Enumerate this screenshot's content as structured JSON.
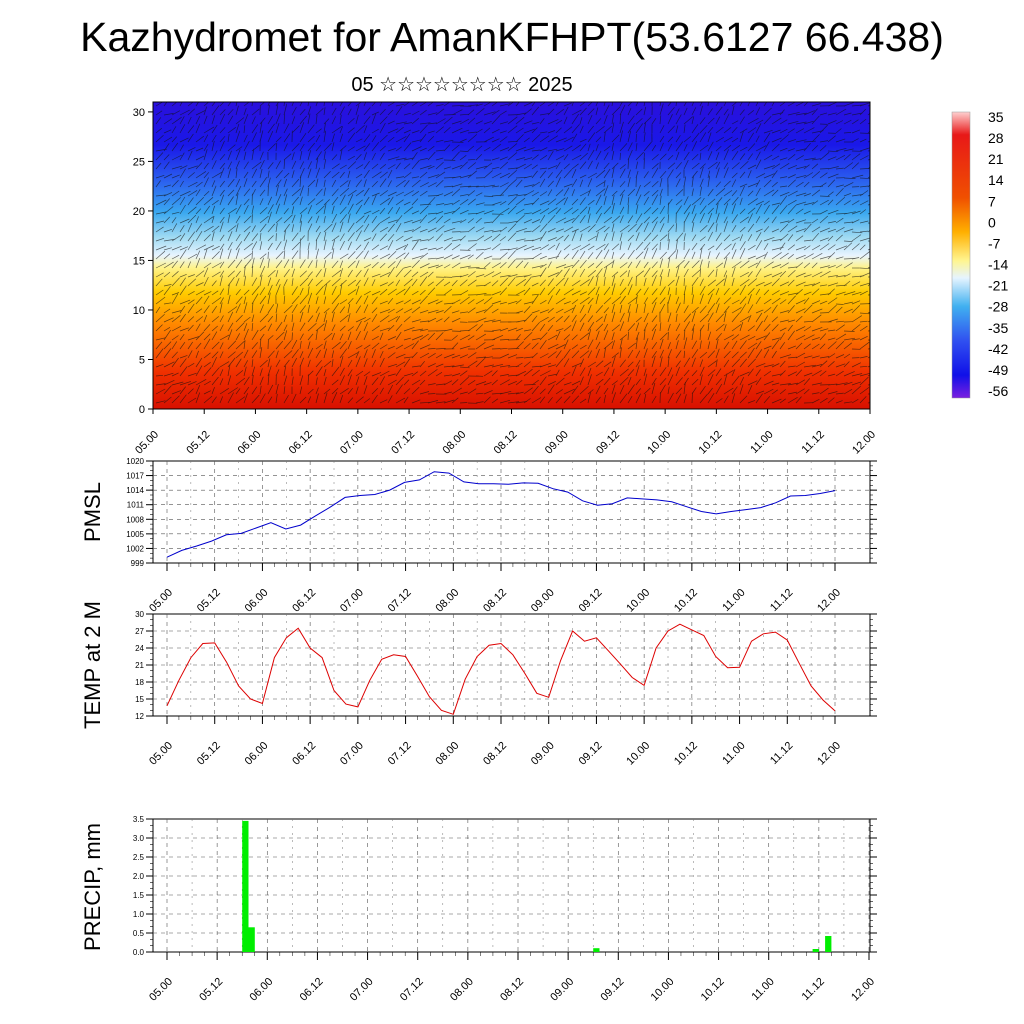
{
  "title": "Kazhydromet for AmanKFHPT(53.6127 66.438)",
  "subtitle": "05 ☆☆☆☆☆☆☆☆ 2025",
  "colors": {
    "pmsl_line": "#0000cc",
    "temp_line": "#dd0000",
    "precip_bar": "#00ee00"
  },
  "chart_data": [
    {
      "type": "heatmap",
      "name": "upper-air-cross-section",
      "x_tick_labels": [
        "05.00",
        "05.12",
        "06.00",
        "06.12",
        "07.00",
        "07.12",
        "08.00",
        "08.12",
        "09.00",
        "09.12",
        "10.00",
        "10.12",
        "11.00",
        "11.12",
        "12.00"
      ],
      "y_ticks": [
        0,
        5,
        10,
        15,
        20,
        25,
        30
      ],
      "ylim": [
        0,
        31
      ],
      "colorbar_labels": [
        "35",
        "28",
        "21",
        "14",
        "7",
        "0",
        "-7",
        "-14",
        "-21",
        "-28",
        "-35",
        "-42",
        "-49",
        "-56"
      ],
      "colorbar_range": [
        -63,
        42
      ]
    },
    {
      "type": "line",
      "name": "pmsl",
      "ylabel": "PMSL",
      "x_tick_labels": [
        "05.00",
        "05.12",
        "06.00",
        "06.12",
        "07.00",
        "07.12",
        "08.00",
        "08.12",
        "09.00",
        "09.12",
        "10.00",
        "10.12",
        "11.00",
        "11.12",
        "12.00"
      ],
      "y_ticks": [
        999,
        1002,
        1005,
        1008,
        1011,
        1014,
        1017,
        1020
      ],
      "ylim": [
        999,
        1020
      ],
      "values": [
        1000.2,
        1001.6,
        1002.5,
        1003.5,
        1004.8,
        1005.1,
        1006.2,
        1007.3,
        1006.0,
        1006.8,
        1008.7,
        1010.5,
        1012.5,
        1012.9,
        1013.1,
        1014.0,
        1015.6,
        1016.1,
        1017.8,
        1017.5,
        1015.7,
        1015.3,
        1015.3,
        1015.2,
        1015.5,
        1015.4,
        1014.3,
        1013.6,
        1011.8,
        1010.9,
        1011.2,
        1012.4,
        1012.2,
        1012.0,
        1011.6,
        1010.6,
        1009.6,
        1009.1,
        1009.6,
        1010.0,
        1010.4,
        1011.4,
        1012.8,
        1012.9,
        1013.3,
        1013.9
      ]
    },
    {
      "type": "line",
      "name": "temp-2m",
      "ylabel": "TEMP at 2 M",
      "x_tick_labels": [
        "05.00",
        "05.12",
        "06.00",
        "06.12",
        "07.00",
        "07.12",
        "08.00",
        "08.12",
        "09.00",
        "09.12",
        "10.00",
        "10.12",
        "11.00",
        "11.12",
        "12.00"
      ],
      "y_ticks": [
        12,
        15,
        18,
        21,
        24,
        27,
        30
      ],
      "ylim": [
        12,
        30
      ],
      "values": [
        13.8,
        18.3,
        22.3,
        24.8,
        24.9,
        21.5,
        17.3,
        15.0,
        14.2,
        22.3,
        25.8,
        27.5,
        24.0,
        22.3,
        16.5,
        14.1,
        13.6,
        18.3,
        22.0,
        22.8,
        22.5,
        19.0,
        15.4,
        13.0,
        12.3,
        18.5,
        22.5,
        24.5,
        24.8,
        22.8,
        19.5,
        16.0,
        15.3,
        21.8,
        27.0,
        25.2,
        25.8,
        23.5,
        21.2,
        18.8,
        17.4,
        24.0,
        27.0,
        28.2,
        27.2,
        26.2,
        22.5,
        20.5,
        20.6,
        25.2,
        26.5,
        26.8,
        25.4,
        21.3,
        17.3,
        14.8,
        12.9
      ]
    },
    {
      "type": "bar",
      "name": "precip",
      "ylabel": "PRECIP, mm",
      "x_tick_labels": [
        "05.00",
        "05.12",
        "06.00",
        "06.12",
        "07.00",
        "07.12",
        "08.00",
        "08.12",
        "09.00",
        "09.12",
        "10.00",
        "10.12",
        "11.00",
        "11.12",
        "12.00"
      ],
      "y_tick_labels": [
        "0.0",
        "0.5",
        "1.0",
        "1.5",
        "2.0",
        "2.5",
        "3.0",
        "3.5"
      ],
      "ylim": [
        0,
        3.5
      ],
      "values": [
        0,
        0,
        0,
        0,
        0,
        0,
        0,
        0,
        0,
        0,
        0,
        0,
        3.45,
        0.65,
        0,
        0,
        0,
        0,
        0,
        0,
        0,
        0,
        0,
        0,
        0,
        0,
        0,
        0,
        0,
        0,
        0,
        0,
        0,
        0,
        0,
        0,
        0,
        0,
        0,
        0,
        0,
        0,
        0,
        0,
        0,
        0,
        0,
        0,
        0,
        0,
        0,
        0,
        0,
        0,
        0,
        0,
        0,
        0,
        0,
        0,
        0,
        0,
        0,
        0,
        0,
        0,
        0,
        0,
        0.1,
        0,
        0,
        0,
        0,
        0,
        0,
        0,
        0,
        0,
        0,
        0,
        0,
        0,
        0,
        0,
        0,
        0,
        0,
        0,
        0,
        0,
        0,
        0,
        0,
        0,
        0,
        0,
        0,
        0,
        0,
        0,
        0,
        0,
        0,
        0.08,
        0,
        0.42,
        0,
        0,
        0,
        0,
        0,
        0
      ]
    }
  ]
}
